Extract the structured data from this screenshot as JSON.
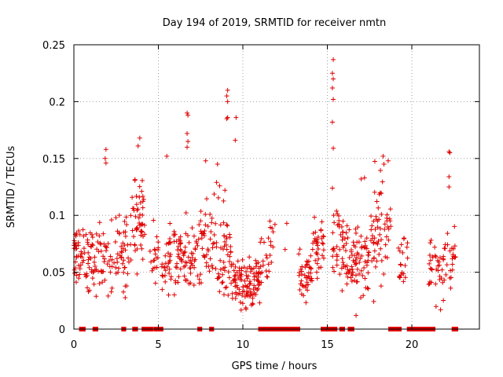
{
  "chart_data": {
    "type": "scatter",
    "title": "Day 194 of 2019, SRMTID for receiver nmtn",
    "xlabel": "GPS time / hours",
    "ylabel": "SRMTID / TECUs",
    "xlim": [
      0,
      24
    ],
    "ylim": [
      0,
      0.25
    ],
    "xticks": [
      0,
      5,
      10,
      15,
      20
    ],
    "xtick_labels": [
      "0",
      "5",
      "10",
      "15",
      "20"
    ],
    "yticks": [
      0,
      0.05,
      0.1,
      0.15,
      0.2,
      0.25
    ],
    "ytick_labels": [
      "0",
      "0.05",
      "0.1",
      "0.15",
      "0.2",
      "0.25"
    ],
    "grid": true,
    "marker": "+",
    "color": "#e00000",
    "clusters": [
      {
        "x": [
          0.0,
          1.2
        ],
        "y_center": 0.062,
        "spread": 0.022,
        "count": 70
      },
      {
        "x": [
          1.2,
          3.4
        ],
        "y_center": 0.068,
        "spread": 0.025,
        "count": 90
      },
      {
        "x": [
          3.4,
          4.2
        ],
        "y_center": 0.095,
        "spread": 0.03,
        "count": 50
      },
      {
        "x": [
          4.4,
          5.0
        ],
        "y_center": 0.07,
        "spread": 0.02,
        "count": 20
      },
      {
        "x": [
          5.2,
          7.5
        ],
        "y_center": 0.062,
        "spread": 0.025,
        "count": 110
      },
      {
        "x": [
          7.5,
          9.3
        ],
        "y_center": 0.075,
        "spread": 0.03,
        "count": 90
      },
      {
        "x": [
          9.3,
          11.0
        ],
        "y_center": 0.043,
        "spread": 0.015,
        "count": 110
      },
      {
        "x": [
          11.0,
          11.8
        ],
        "y_center": 0.065,
        "spread": 0.025,
        "count": 25
      },
      {
        "x": [
          13.3,
          14.1
        ],
        "y_center": 0.045,
        "spread": 0.015,
        "count": 45
      },
      {
        "x": [
          14.1,
          14.8
        ],
        "y_center": 0.075,
        "spread": 0.025,
        "count": 35
      },
      {
        "x": [
          15.3,
          16.0
        ],
        "y_center": 0.075,
        "spread": 0.025,
        "count": 40
      },
      {
        "x": [
          16.0,
          17.5
        ],
        "y_center": 0.062,
        "spread": 0.02,
        "count": 80
      },
      {
        "x": [
          17.5,
          18.8
        ],
        "y_center": 0.085,
        "spread": 0.03,
        "count": 60
      },
      {
        "x": [
          19.2,
          19.8
        ],
        "y_center": 0.06,
        "spread": 0.015,
        "count": 20
      },
      {
        "x": [
          21.0,
          22.6
        ],
        "y_center": 0.055,
        "spread": 0.02,
        "count": 60
      }
    ],
    "outliers": [
      {
        "x": 9.1,
        "y": 0.21
      },
      {
        "x": 9.05,
        "y": 0.205
      },
      {
        "x": 9.1,
        "y": 0.2
      },
      {
        "x": 9.05,
        "y": 0.185
      },
      {
        "x": 9.1,
        "y": 0.186
      },
      {
        "x": 6.7,
        "y": 0.19
      },
      {
        "x": 6.75,
        "y": 0.188
      },
      {
        "x": 6.7,
        "y": 0.172
      },
      {
        "x": 6.75,
        "y": 0.165
      },
      {
        "x": 6.7,
        "y": 0.16
      },
      {
        "x": 9.6,
        "y": 0.186
      },
      {
        "x": 9.55,
        "y": 0.166
      },
      {
        "x": 3.9,
        "y": 0.168
      },
      {
        "x": 3.8,
        "y": 0.161
      },
      {
        "x": 1.9,
        "y": 0.158
      },
      {
        "x": 1.85,
        "y": 0.15
      },
      {
        "x": 1.9,
        "y": 0.146
      },
      {
        "x": 15.35,
        "y": 0.237
      },
      {
        "x": 15.3,
        "y": 0.225
      },
      {
        "x": 15.35,
        "y": 0.22
      },
      {
        "x": 15.3,
        "y": 0.212
      },
      {
        "x": 15.35,
        "y": 0.202
      },
      {
        "x": 15.3,
        "y": 0.182
      },
      {
        "x": 15.35,
        "y": 0.159
      },
      {
        "x": 15.3,
        "y": 0.124
      },
      {
        "x": 18.3,
        "y": 0.152
      },
      {
        "x": 18.6,
        "y": 0.148
      },
      {
        "x": 18.35,
        "y": 0.145
      },
      {
        "x": 22.2,
        "y": 0.156
      },
      {
        "x": 22.25,
        "y": 0.155
      },
      {
        "x": 22.2,
        "y": 0.134
      },
      {
        "x": 22.2,
        "y": 0.125
      },
      {
        "x": 5.5,
        "y": 0.152
      },
      {
        "x": 7.8,
        "y": 0.148
      },
      {
        "x": 8.5,
        "y": 0.145
      },
      {
        "x": 11.9,
        "y": 0.092
      },
      {
        "x": 12.5,
        "y": 0.07
      },
      {
        "x": 12.6,
        "y": 0.093
      },
      {
        "x": 11.6,
        "y": 0.095
      },
      {
        "x": 21.7,
        "y": 0.017
      },
      {
        "x": 16.7,
        "y": 0.012
      },
      {
        "x": 17.2,
        "y": 0.133
      },
      {
        "x": 17.0,
        "y": 0.132
      }
    ],
    "zero_segments": [
      [
        0.4,
        0.6
      ],
      [
        1.2,
        1.35
      ],
      [
        2.9,
        3.0
      ],
      [
        3.55,
        3.7
      ],
      [
        4.1,
        4.6
      ],
      [
        4.8,
        5.2
      ],
      [
        7.4,
        7.5
      ],
      [
        8.1,
        8.2
      ],
      [
        11.0,
        11.3
      ],
      [
        11.45,
        13.3
      ],
      [
        14.7,
        15.5
      ],
      [
        15.8,
        15.95
      ],
      [
        16.3,
        16.5
      ],
      [
        18.7,
        19.3
      ],
      [
        19.8,
        21.3
      ],
      [
        22.45,
        22.65
      ]
    ]
  }
}
